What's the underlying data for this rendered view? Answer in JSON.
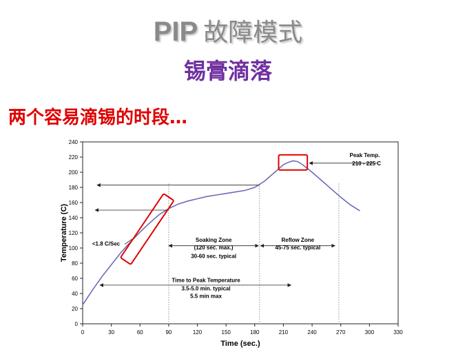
{
  "slide": {
    "title_pip": "PIP",
    "title_cn": "故障模式",
    "subtitle": "锡膏滴落",
    "heading": "两个容易滴锡的时段…"
  },
  "colors": {
    "title_gray": "#8a8a8a",
    "subtitle_purple": "#7030a0",
    "heading_red": "#e00000",
    "highlight_red": "#e00000",
    "curve": "#6b6bb8"
  },
  "chart_data": {
    "type": "line",
    "xlabel": "Time (sec.)",
    "ylabel": "Temperature (C)",
    "xlim": [
      0,
      330
    ],
    "ylim": [
      0,
      240
    ],
    "x_ticks": [
      "0",
      "30",
      "60",
      "90",
      "120",
      "150",
      "180",
      "210",
      "240",
      "270",
      "300",
      "330"
    ],
    "y_ticks": [
      "0",
      "20",
      "40",
      "60",
      "80",
      "100",
      "120",
      "140",
      "160",
      "180",
      "200",
      "220",
      "240"
    ],
    "grid": false,
    "series": [
      {
        "x": [
          0,
          10,
          20,
          30,
          40,
          50,
          60,
          70,
          80,
          90,
          100,
          110,
          120,
          130,
          140,
          150,
          160,
          170,
          180,
          190,
          200,
          210,
          215,
          220,
          225,
          230,
          240,
          250,
          260,
          270,
          280,
          290
        ],
        "y": [
          25,
          44,
          62,
          78,
          94,
          108,
          121,
          133,
          144,
          152,
          158,
          162,
          165,
          168,
          170,
          172,
          174,
          176,
          180,
          188,
          199,
          210,
          213,
          215,
          214,
          210,
          200,
          189,
          178,
          167,
          157,
          149
        ]
      }
    ],
    "annotations": {
      "peak_temp": "Peak Temp.",
      "peak_range": "210 - 225 C",
      "ramp_rate": "<1.8 C/Sec",
      "soaking_zone": "Soaking Zone",
      "soaking_max": "(120 sec. max.)",
      "soaking_typical": "30-60 sec. typical",
      "reflow_zone": "Reflow Zone",
      "reflow_typical": "45-75 sec. typical",
      "time_to_peak": "Time to Peak Temperature",
      "ttp_range": "3.5-5.0 min. typical",
      "ttp_max": "5.5 min max"
    },
    "zone_boundaries_sec": [
      90,
      185,
      268
    ],
    "left_arrow_levels_c": [
      183,
      150
    ],
    "highlight_boxes": [
      {
        "name": "ramp",
        "x_range": [
          45,
          90
        ],
        "y_range": [
          95,
          155
        ],
        "note": "rotated along ramp"
      },
      {
        "name": "peak",
        "x_range": [
          205,
          235
        ],
        "y_range": [
          203,
          223
        ]
      }
    ]
  }
}
